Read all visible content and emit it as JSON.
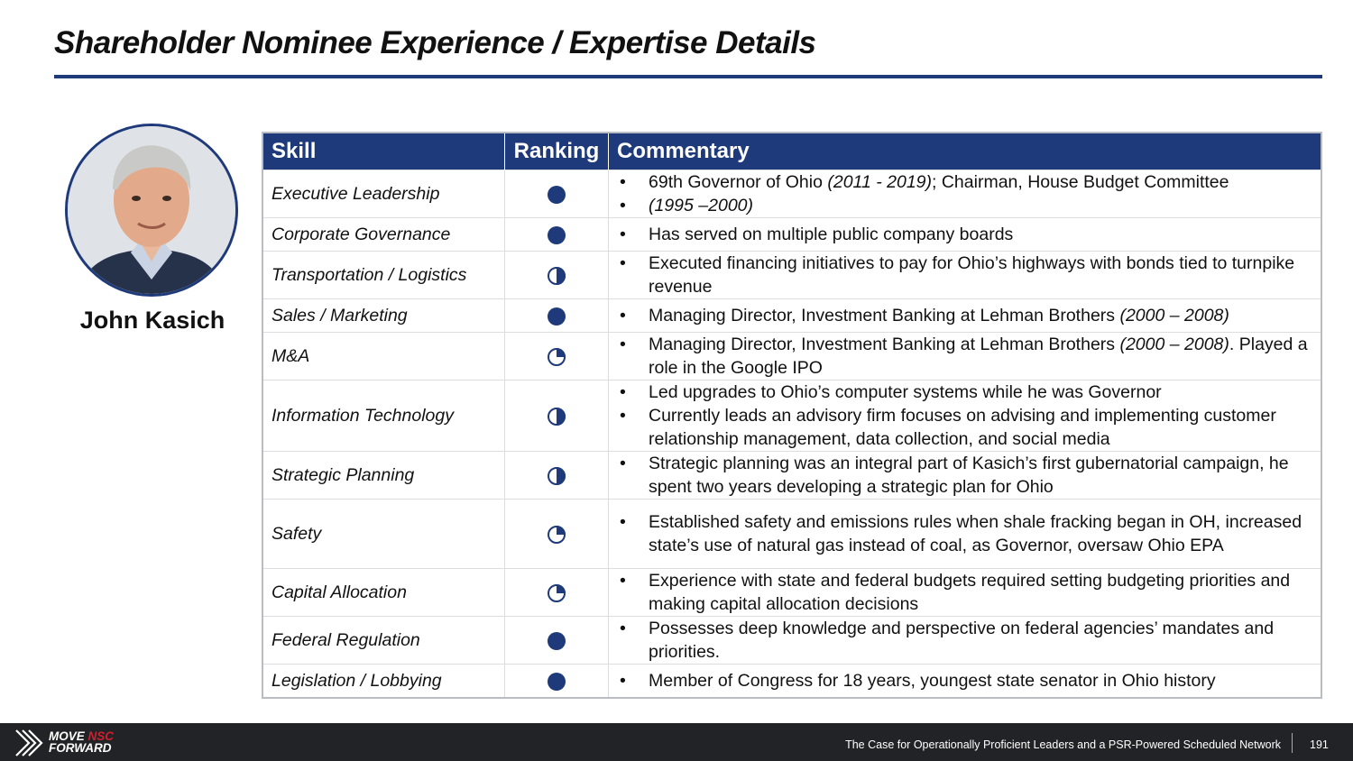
{
  "title": "Shareholder Nominee Experience / Expertise Details",
  "nominee": {
    "name": "John Kasich"
  },
  "table": {
    "headers": {
      "skill": "Skill",
      "ranking": "Ranking",
      "commentary": "Commentary"
    },
    "rows": [
      {
        "skill": "Executive Leadership",
        "ranking": 1.0,
        "commentary": [
          {
            "parts": [
              {
                "t": "69th Governor of Ohio "
              },
              {
                "t": "(2011 - 2019)",
                "i": true
              },
              {
                "t": "; Chairman, House Budget Committee"
              }
            ]
          },
          {
            "parts": [
              {
                "t": "(1995 –2000)",
                "i": true
              }
            ]
          }
        ]
      },
      {
        "skill": "Corporate Governance",
        "ranking": 1.0,
        "commentary": [
          {
            "parts": [
              {
                "t": "Has served on multiple public company boards"
              }
            ]
          }
        ]
      },
      {
        "skill": "Transportation / Logistics",
        "ranking": 0.5,
        "commentary": [
          {
            "parts": [
              {
                "t": "Executed financing initiatives to pay for Ohio’s highways with bonds tied to turnpike revenue"
              }
            ]
          }
        ]
      },
      {
        "skill": "Sales / Marketing",
        "ranking": 1.0,
        "commentary": [
          {
            "parts": [
              {
                "t": "Managing Director, Investment Banking at Lehman Brothers "
              },
              {
                "t": "(2000 – 2008)",
                "i": true
              }
            ]
          }
        ]
      },
      {
        "skill": "M&A",
        "ranking": 0.25,
        "commentary": [
          {
            "parts": [
              {
                "t": "Managing Director, Investment Banking at Lehman Brothers "
              },
              {
                "t": "(2000 – 2008)",
                "i": true
              },
              {
                "t": ". Played a role in the Google IPO"
              }
            ]
          }
        ]
      },
      {
        "skill": "Information Technology",
        "ranking": 0.5,
        "commentary": [
          {
            "parts": [
              {
                "t": "Led upgrades to Ohio’s computer systems while he was Governor"
              }
            ]
          },
          {
            "parts": [
              {
                "t": "Currently leads an advisory firm focuses on advising and implementing customer relationship management, data collection, and social media"
              }
            ]
          }
        ]
      },
      {
        "skill": "Strategic Planning",
        "ranking": 0.5,
        "commentary": [
          {
            "parts": [
              {
                "t": "Strategic planning was an integral part of Kasich’s first gubernatorial campaign, he spent two years developing a strategic plan for Ohio"
              }
            ]
          }
        ]
      },
      {
        "skill": "Safety",
        "ranking": 0.25,
        "commentary": [
          {
            "parts": [
              {
                "t": "Established safety and emissions rules when shale fracking began in OH, increased state’s use of natural gas instead of coal, as Governor, oversaw Ohio EPA"
              }
            ]
          }
        ]
      },
      {
        "skill": "Capital Allocation",
        "ranking": 0.25,
        "commentary": [
          {
            "parts": [
              {
                "t": "Experience with state and federal budgets required setting budgeting priorities and making capital allocation decisions"
              }
            ]
          }
        ]
      },
      {
        "skill": "Federal Regulation",
        "ranking": 1.0,
        "commentary": [
          {
            "parts": [
              {
                "t": "Possesses deep knowledge and perspective on federal agencies’ mandates and priorities."
              }
            ]
          }
        ]
      },
      {
        "skill": "Legislation / Lobbying",
        "ranking": 1.0,
        "commentary": [
          {
            "parts": [
              {
                "t": "Member of Congress for 18 years, youngest state senator in Ohio history"
              }
            ]
          }
        ]
      }
    ]
  },
  "bullet_char": "•",
  "footer": {
    "logo_line1_a": "MOVE",
    "logo_line1_b": "NSC",
    "logo_line2": "FORWARD",
    "text": "The Case for Operationally Proficient Leaders and a PSR-Powered Scheduled Network",
    "page": "191"
  },
  "colors": {
    "brand_navy": "#1f3a7a",
    "logo_red": "#d0202f",
    "footer_bg": "#222326"
  }
}
